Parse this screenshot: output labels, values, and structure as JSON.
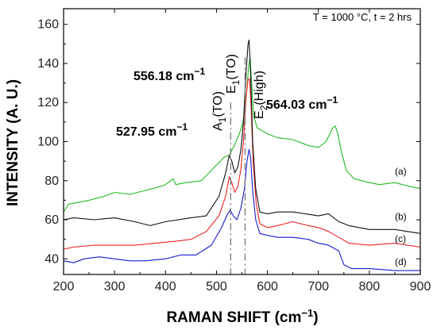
{
  "chart_data": {
    "type": "line",
    "title": "",
    "condition_text": "T = 1000 °C, t = 2 hrs",
    "xlabel_main": "RAMAN SHIFT (cm",
    "xlabel_sup": "−1",
    "xlabel_end": ")",
    "ylabel": "INTENSITY (A. U.)",
    "xlim": [
      200,
      900
    ],
    "ylim": [
      32,
      168
    ],
    "x_ticks": [
      200,
      300,
      400,
      500,
      600,
      700,
      800,
      900
    ],
    "y_ticks": [
      40,
      60,
      80,
      100,
      120,
      140,
      160
    ],
    "grid": false,
    "series": [
      {
        "name": "(a)",
        "color": "#22bb22",
        "points": [
          [
            200,
            64
          ],
          [
            210,
            68
          ],
          [
            230,
            69
          ],
          [
            250,
            70
          ],
          [
            280,
            72
          ],
          [
            300,
            74
          ],
          [
            330,
            73
          ],
          [
            360,
            75
          ],
          [
            390,
            77
          ],
          [
            400,
            78
          ],
          [
            415,
            81
          ],
          [
            420,
            78
          ],
          [
            440,
            79
          ],
          [
            470,
            80
          ],
          [
            500,
            88
          ],
          [
            515,
            92
          ],
          [
            525,
            93
          ],
          [
            535,
            98
          ],
          [
            545,
            104
          ],
          [
            552,
            110
          ],
          [
            556,
            118
          ],
          [
            560,
            128
          ],
          [
            563,
            138
          ],
          [
            566,
            143
          ],
          [
            569,
            130
          ],
          [
            573,
            113
          ],
          [
            580,
            107
          ],
          [
            600,
            104
          ],
          [
            620,
            102
          ],
          [
            650,
            101
          ],
          [
            680,
            98
          ],
          [
            700,
            97
          ],
          [
            715,
            100
          ],
          [
            728,
            107
          ],
          [
            733,
            108
          ],
          [
            738,
            104
          ],
          [
            745,
            95
          ],
          [
            755,
            85
          ],
          [
            770,
            81
          ],
          [
            800,
            79
          ],
          [
            820,
            78
          ],
          [
            850,
            79
          ],
          [
            880,
            77
          ],
          [
            900,
            76
          ]
        ]
      },
      {
        "name": "(b)",
        "color": "#111111",
        "points": [
          [
            200,
            60
          ],
          [
            220,
            61
          ],
          [
            260,
            60
          ],
          [
            300,
            61
          ],
          [
            340,
            59
          ],
          [
            370,
            57
          ],
          [
            400,
            59
          ],
          [
            450,
            61
          ],
          [
            480,
            62
          ],
          [
            505,
            72
          ],
          [
            518,
            84
          ],
          [
            525,
            93
          ],
          [
            530,
            90
          ],
          [
            536,
            84
          ],
          [
            542,
            87
          ],
          [
            548,
            96
          ],
          [
            553,
            110
          ],
          [
            558,
            135
          ],
          [
            562,
            150
          ],
          [
            564,
            152
          ],
          [
            567,
            135
          ],
          [
            571,
            100
          ],
          [
            577,
            76
          ],
          [
            585,
            64
          ],
          [
            600,
            63
          ],
          [
            620,
            64
          ],
          [
            650,
            64
          ],
          [
            700,
            62
          ],
          [
            720,
            63
          ],
          [
            740,
            59
          ],
          [
            760,
            57
          ],
          [
            800,
            55
          ],
          [
            850,
            55
          ],
          [
            900,
            53
          ]
        ]
      },
      {
        "name": "(c)",
        "color": "#ee2222",
        "points": [
          [
            200,
            45
          ],
          [
            220,
            46
          ],
          [
            260,
            47
          ],
          [
            300,
            47
          ],
          [
            340,
            47
          ],
          [
            380,
            48
          ],
          [
            420,
            49
          ],
          [
            450,
            50
          ],
          [
            480,
            54
          ],
          [
            505,
            62
          ],
          [
            518,
            72
          ],
          [
            525,
            82
          ],
          [
            530,
            79
          ],
          [
            536,
            74
          ],
          [
            542,
            77
          ],
          [
            548,
            86
          ],
          [
            553,
            100
          ],
          [
            558,
            122
          ],
          [
            562,
            132
          ],
          [
            565,
            132
          ],
          [
            568,
            118
          ],
          [
            572,
            90
          ],
          [
            578,
            68
          ],
          [
            585,
            58
          ],
          [
            600,
            56
          ],
          [
            620,
            57
          ],
          [
            650,
            59
          ],
          [
            680,
            57
          ],
          [
            700,
            56
          ],
          [
            720,
            54
          ],
          [
            740,
            51
          ],
          [
            760,
            48
          ],
          [
            800,
            47
          ],
          [
            850,
            48
          ],
          [
            900,
            46
          ]
        ]
      },
      {
        "name": "(d)",
        "color": "#1a1ad0",
        "points": [
          [
            200,
            39
          ],
          [
            220,
            38
          ],
          [
            240,
            40
          ],
          [
            270,
            41
          ],
          [
            300,
            40
          ],
          [
            330,
            39
          ],
          [
            360,
            39
          ],
          [
            400,
            40
          ],
          [
            430,
            42
          ],
          [
            460,
            42
          ],
          [
            490,
            47
          ],
          [
            510,
            56
          ],
          [
            520,
            62
          ],
          [
            527,
            65
          ],
          [
            533,
            62
          ],
          [
            540,
            60
          ],
          [
            548,
            66
          ],
          [
            555,
            76
          ],
          [
            560,
            90
          ],
          [
            564,
            96
          ],
          [
            567,
            92
          ],
          [
            571,
            75
          ],
          [
            577,
            60
          ],
          [
            585,
            53
          ],
          [
            600,
            52
          ],
          [
            620,
            51
          ],
          [
            650,
            51
          ],
          [
            680,
            50
          ],
          [
            700,
            48
          ],
          [
            720,
            47
          ],
          [
            740,
            44
          ],
          [
            750,
            37
          ],
          [
            765,
            35
          ],
          [
            800,
            35
          ],
          [
            850,
            34
          ],
          [
            900,
            34
          ]
        ]
      }
    ],
    "reference_lines": [
      {
        "x": 527.95,
        "label": "527.95 cm",
        "sup": "−1"
      },
      {
        "x": 556.18,
        "label": "556.18 cm",
        "sup": "−1"
      }
    ],
    "peak_labels": {
      "a1": {
        "main": "A",
        "sub": "1",
        "rest": "(TO)"
      },
      "e1": {
        "main": "E",
        "sub": "1",
        "rest": "(TO)"
      },
      "e2": {
        "main": "E",
        "sub": "2",
        "rest": "(High)"
      }
    },
    "peak_value_e2": {
      "label": "564.03 cm",
      "sup": "−1"
    }
  }
}
